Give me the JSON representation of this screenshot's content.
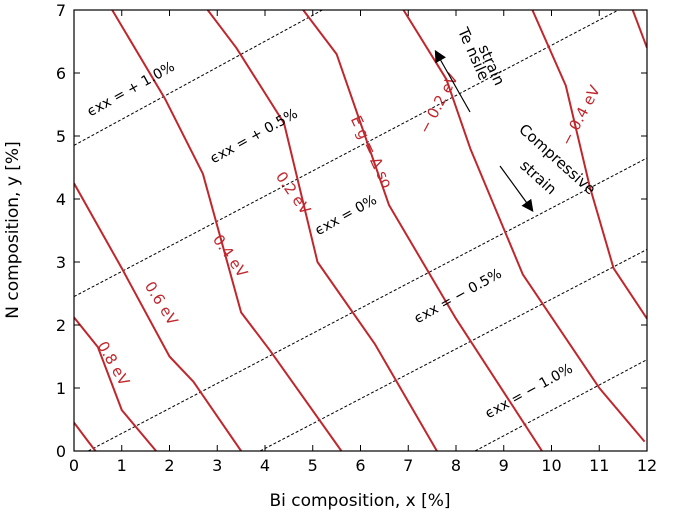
{
  "chart_data": {
    "type": "line",
    "xlabel": "Bi composition, x [%]",
    "ylabel": "N composition, y [%]",
    "xlim": [
      0,
      12
    ],
    "ylim": [
      0,
      7
    ],
    "xticks": [
      "0",
      "1",
      "2",
      "3",
      "4",
      "5",
      "6",
      "7",
      "8",
      "9",
      "10",
      "11",
      "12"
    ],
    "yticks": [
      "0",
      "1",
      "2",
      "3",
      "4",
      "5",
      "6",
      "7"
    ],
    "grid": false,
    "colors": {
      "bandgap": "#c0272d",
      "strain": "#000000"
    },
    "bandgap_contours": [
      {
        "label": "0.8 eV",
        "points": [
          [
            0,
            0.45
          ],
          [
            0.3,
            0.15
          ],
          [
            0.45,
            0
          ]
        ]
      },
      {
        "label": "0.8 eV",
        "points": [
          [
            0,
            2.12
          ],
          [
            0.5,
            1.65
          ],
          [
            1.0,
            0.65
          ],
          [
            1.72,
            0
          ]
        ]
      },
      {
        "label": "0.6 eV",
        "points": [
          [
            0,
            4.25
          ],
          [
            1.0,
            2.9
          ],
          [
            2.0,
            1.5
          ],
          [
            2.5,
            1.1
          ],
          [
            3.5,
            0
          ]
        ]
      },
      {
        "label": "0.4 eV",
        "points": [
          [
            0.8,
            7.0
          ],
          [
            1.9,
            5.6
          ],
          [
            2.7,
            4.4
          ],
          [
            3.5,
            2.2
          ],
          [
            4.1,
            1.6
          ],
          [
            5.6,
            0
          ]
        ]
      },
      {
        "label": "0.2 eV",
        "points": [
          [
            2.8,
            7.0
          ],
          [
            3.4,
            6.4
          ],
          [
            4.4,
            5.2
          ],
          [
            5.1,
            3.0
          ],
          [
            6.3,
            1.7
          ],
          [
            7.6,
            0
          ]
        ]
      },
      {
        "label": "E_g = Δ_so",
        "points": [
          [
            4.8,
            7.0
          ],
          [
            5.5,
            6.3
          ],
          [
            6.6,
            3.9
          ],
          [
            8.0,
            2.1
          ],
          [
            9.8,
            0
          ]
        ]
      },
      {
        "label": "− 0.2 eV",
        "points": [
          [
            6.9,
            7.0
          ],
          [
            7.8,
            5.9
          ],
          [
            8.3,
            4.8
          ],
          [
            9.4,
            2.8
          ],
          [
            11.0,
            1.0
          ],
          [
            11.95,
            0.15
          ]
        ]
      },
      {
        "label": "− 0.4 eV",
        "points": [
          [
            9.6,
            7.0
          ],
          [
            10.3,
            5.8
          ],
          [
            10.8,
            4.2
          ],
          [
            11.3,
            2.9
          ],
          [
            12.0,
            2.1
          ]
        ]
      },
      {
        "label": "",
        "points": [
          [
            11.7,
            7.0
          ],
          [
            12.0,
            6.4
          ]
        ]
      }
    ],
    "strain_lines": [
      {
        "label": "+ 1.0%",
        "points": [
          [
            0,
            4.85
          ],
          [
            5.2,
            7.0
          ]
        ]
      },
      {
        "label": "+ 0.5%",
        "points": [
          [
            0,
            2.45
          ],
          [
            11.4,
            7.0
          ]
        ]
      },
      {
        "label": "0%",
        "points": [
          [
            0.3,
            0
          ],
          [
            12.0,
            4.65
          ]
        ]
      },
      {
        "label": "− 0.5%",
        "points": [
          [
            3.9,
            0
          ],
          [
            12.0,
            3.2
          ]
        ]
      },
      {
        "label": "− 1.0%",
        "points": [
          [
            8.4,
            0
          ],
          [
            12.0,
            1.45
          ]
        ]
      }
    ],
    "annotations": {
      "tensile_1": "Te nsile",
      "tensile_2": "strain",
      "compressive_1": "Compressive",
      "compressive_2": "strain",
      "label_08": "0.8 eV",
      "label_06": "0.6 eV",
      "label_04": "0.4 eV",
      "label_02": "0.2 eV",
      "label_eg": "E g = Δ so",
      "label_m02": "− 0.2 eV",
      "label_m04": "− 0.4 eV",
      "strain_p10": "ϵxx = + 1.0%",
      "strain_p05": "ϵxx = + 0.5%",
      "strain_00": "ϵxx = 0%",
      "strain_m05": "ϵxx = − 0.5%",
      "strain_m10": "ϵxx = − 1.0%"
    }
  }
}
